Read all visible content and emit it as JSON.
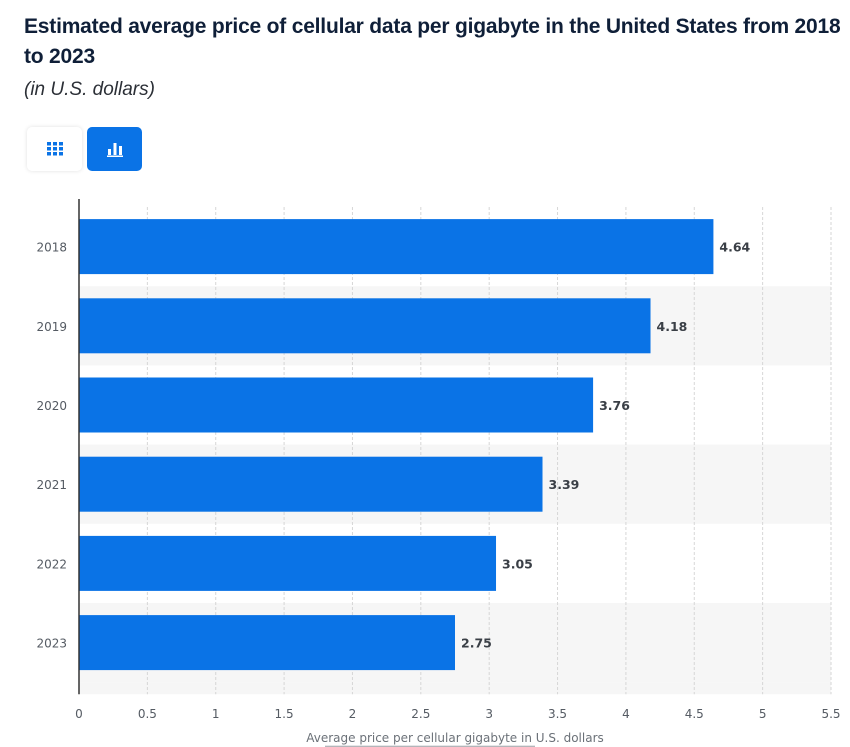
{
  "header": {
    "title": "Estimated average price of cellular data per gigabyte in the United States from 2018 to 2023",
    "subtitle": "(in U.S. dollars)"
  },
  "view_toggle": {
    "options": [
      {
        "name": "table-view",
        "icon": "grid-icon",
        "active": false
      },
      {
        "name": "chart-view",
        "icon": "bar-chart-icon",
        "active": true
      }
    ]
  },
  "colors": {
    "bar": "#0a73e6",
    "accent": "#0a73e6",
    "band_alt": "#f6f6f6",
    "grid": "#d6d6d6",
    "axis": "#333333"
  },
  "chart_data": {
    "type": "bar",
    "orientation": "horizontal",
    "title": "Estimated average price of cellular data per gigabyte in the United States from 2018 to 2023",
    "subtitle": "(in U.S. dollars)",
    "categories": [
      "2018",
      "2019",
      "2020",
      "2021",
      "2022",
      "2023"
    ],
    "values": [
      4.64,
      4.18,
      3.76,
      3.39,
      3.05,
      2.75
    ],
    "data_labels": [
      "4.64",
      "4.18",
      "3.76",
      "3.39",
      "3.05",
      "2.75"
    ],
    "xlabel": "Average price per cellular gigabyte in U.S. dollars",
    "ylabel": "",
    "xlim": [
      0,
      5.5
    ],
    "xticks": [
      0,
      0.5,
      1,
      1.5,
      2,
      2.5,
      3,
      3.5,
      4,
      4.5,
      5,
      5.5
    ],
    "xtick_labels": [
      "0",
      "0.5",
      "1",
      "1.5",
      "2",
      "2.5",
      "3",
      "3.5",
      "4",
      "4.5",
      "5",
      "5.5"
    ],
    "grid": true,
    "legend": "none"
  }
}
